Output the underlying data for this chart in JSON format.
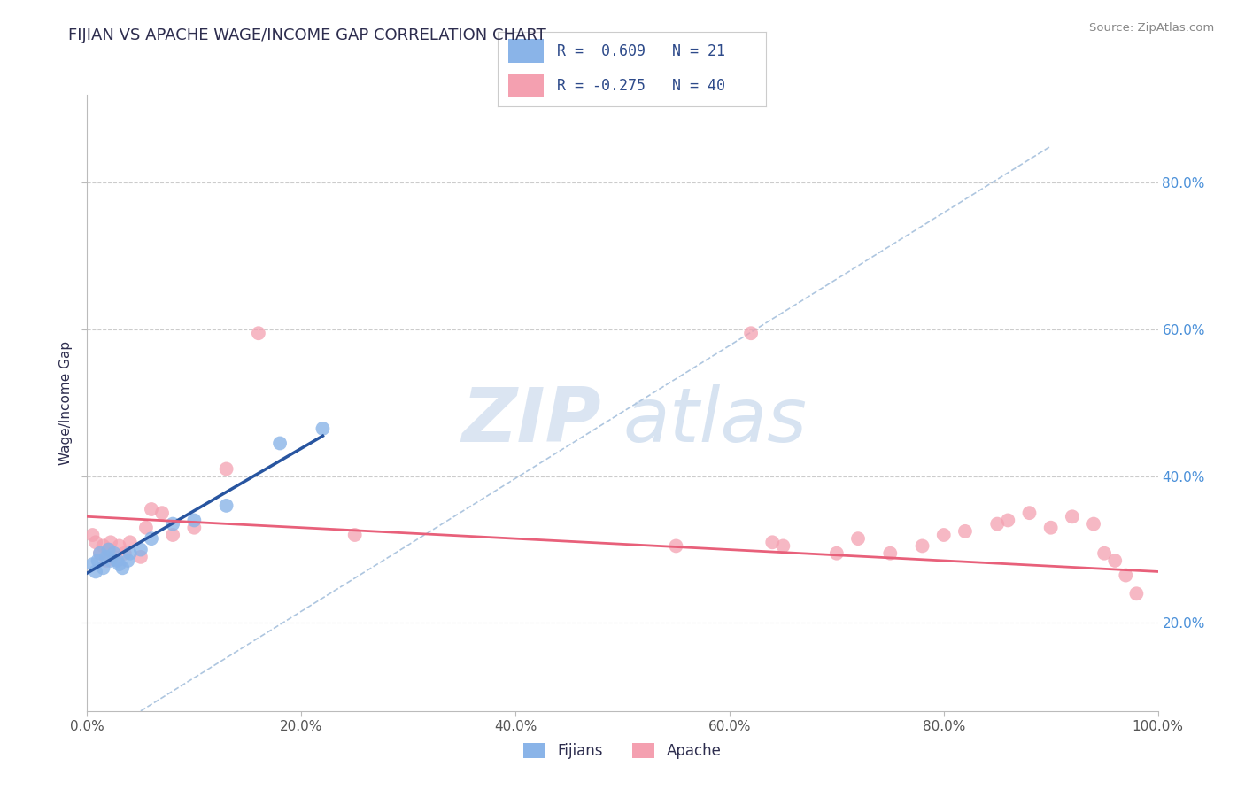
{
  "title": "FIJIAN VS APACHE WAGE/INCOME GAP CORRELATION CHART",
  "source": "Source: ZipAtlas.com",
  "ylabel": "Wage/Income Gap",
  "xlim": [
    0,
    1.0
  ],
  "ylim": [
    0.08,
    0.92
  ],
  "xticks": [
    0.0,
    0.2,
    0.4,
    0.6,
    0.8,
    1.0
  ],
  "yticks": [
    0.2,
    0.4,
    0.6,
    0.8
  ],
  "xtick_labels": [
    "0.0%",
    "20.0%",
    "40.0%",
    "60.0%",
    "80.0%",
    "100.0%"
  ],
  "ytick_labels": [
    "20.0%",
    "40.0%",
    "60.0%",
    "80.0%"
  ],
  "fijian_color": "#8ab4e8",
  "apache_color": "#f4a0b0",
  "fijian_R": 0.609,
  "fijian_N": 21,
  "apache_R": -0.275,
  "apache_N": 40,
  "title_color": "#2d2d4e",
  "source_color": "#888888",
  "fijian_x": [
    0.005,
    0.008,
    0.01,
    0.012,
    0.015,
    0.018,
    0.02,
    0.022,
    0.025,
    0.028,
    0.03,
    0.033,
    0.038,
    0.04,
    0.05,
    0.06,
    0.08,
    0.1,
    0.13,
    0.18,
    0.22
  ],
  "fijian_y": [
    0.28,
    0.27,
    0.285,
    0.295,
    0.275,
    0.29,
    0.3,
    0.285,
    0.295,
    0.285,
    0.28,
    0.275,
    0.285,
    0.295,
    0.3,
    0.315,
    0.335,
    0.34,
    0.36,
    0.445,
    0.465
  ],
  "apache_x": [
    0.005,
    0.008,
    0.012,
    0.015,
    0.018,
    0.02,
    0.022,
    0.025,
    0.03,
    0.035,
    0.04,
    0.05,
    0.055,
    0.06,
    0.07,
    0.08,
    0.1,
    0.13,
    0.16,
    0.25,
    0.55,
    0.62,
    0.64,
    0.65,
    0.7,
    0.72,
    0.75,
    0.78,
    0.8,
    0.82,
    0.85,
    0.86,
    0.88,
    0.9,
    0.92,
    0.94,
    0.95,
    0.96,
    0.97,
    0.98
  ],
  "apache_y": [
    0.32,
    0.31,
    0.295,
    0.305,
    0.285,
    0.3,
    0.31,
    0.29,
    0.305,
    0.295,
    0.31,
    0.29,
    0.33,
    0.355,
    0.35,
    0.32,
    0.33,
    0.41,
    0.595,
    0.32,
    0.305,
    0.595,
    0.31,
    0.305,
    0.295,
    0.315,
    0.295,
    0.305,
    0.32,
    0.325,
    0.335,
    0.34,
    0.35,
    0.33,
    0.345,
    0.335,
    0.295,
    0.285,
    0.265,
    0.24
  ],
  "blue_line_color": "#2855a0",
  "pink_line_color": "#e8607a",
  "dash_line_color": "#9ab8d8",
  "grid_color": "#cccccc",
  "background_color": "#ffffff",
  "legend_fontsize": 13,
  "title_fontsize": 13,
  "axis_label_fontsize": 11,
  "tick_fontsize": 11,
  "blue_line_x": [
    0.0,
    0.22
  ],
  "blue_line_y_start": 0.268,
  "blue_line_y_end": 0.455,
  "pink_line_x": [
    0.0,
    1.0
  ],
  "pink_line_y_start": 0.345,
  "pink_line_y_end": 0.27,
  "dash_line_x": [
    0.05,
    0.9
  ],
  "dash_line_y": [
    0.08,
    0.85
  ]
}
